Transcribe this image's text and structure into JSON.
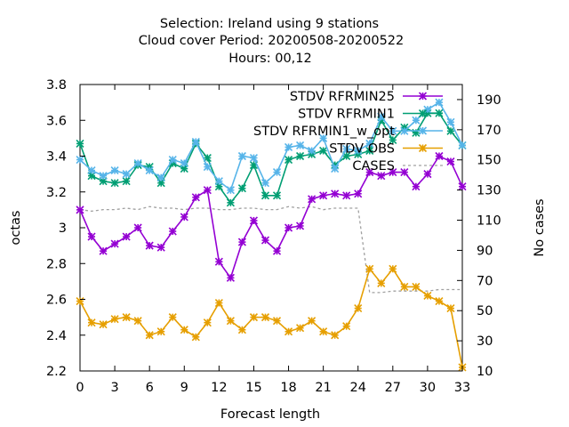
{
  "chart_data": {
    "type": "line",
    "title_lines": [
      "Selection: Ireland using     9 stations",
      "Cloud cover   Period: 20200508-20200522",
      "Hours:  00,12"
    ],
    "xlabel": "Forecast length",
    "ylabel": "octas",
    "y2label": "No cases",
    "xlim": [
      0,
      33
    ],
    "ylim": [
      2.2,
      3.8
    ],
    "y2lim": [
      10,
      200
    ],
    "xticks": [
      0,
      3,
      6,
      9,
      12,
      15,
      18,
      21,
      24,
      27,
      30,
      33
    ],
    "yticks": [
      2.2,
      2.4,
      2.6,
      2.8,
      3,
      3.2,
      3.4,
      3.6,
      3.8
    ],
    "y2ticks": [
      10,
      30,
      50,
      70,
      90,
      110,
      130,
      150,
      170,
      190
    ],
    "ytick_labels": [
      "2.2",
      "2.4",
      "2.6",
      "2.8",
      "3",
      "3.2",
      "3.4",
      "3.6",
      "3.8"
    ],
    "legend_position": "top-right",
    "x": [
      0,
      1,
      2,
      3,
      4,
      5,
      6,
      7,
      8,
      9,
      10,
      11,
      12,
      13,
      14,
      15,
      16,
      17,
      18,
      19,
      20,
      21,
      22,
      23,
      24,
      25,
      26,
      27,
      28,
      29,
      30,
      31,
      32,
      33
    ],
    "series": [
      {
        "name": "STDV RFRMIN25",
        "color": "#9400d3",
        "marker": "x-cross",
        "axis": "left",
        "values": [
          3.1,
          2.95,
          2.87,
          2.91,
          2.95,
          3.0,
          2.9,
          2.89,
          2.98,
          3.06,
          3.17,
          3.21,
          2.81,
          2.72,
          2.92,
          3.04,
          2.93,
          2.87,
          3.0,
          3.01,
          3.16,
          3.18,
          3.19,
          3.18,
          3.19,
          3.31,
          3.29,
          3.31,
          3.31,
          3.23,
          3.3,
          3.4,
          3.37,
          3.23
        ]
      },
      {
        "name": "STDV RFRMIN1",
        "color": "#009e73",
        "marker": "x-cross",
        "axis": "left",
        "values": [
          3.47,
          3.29,
          3.26,
          3.25,
          3.26,
          3.35,
          3.34,
          3.25,
          3.36,
          3.33,
          3.47,
          3.39,
          3.23,
          3.14,
          3.22,
          3.35,
          3.18,
          3.18,
          3.38,
          3.4,
          3.41,
          3.43,
          3.35,
          3.4,
          3.41,
          3.43,
          3.6,
          3.49,
          3.56,
          3.53,
          3.64,
          3.64,
          3.54,
          3.46
        ]
      },
      {
        "name": "STDV RFRMIN1_w_opt",
        "color": "#56b4e9",
        "marker": "x-cross",
        "axis": "left",
        "values": [
          3.38,
          3.32,
          3.29,
          3.32,
          3.3,
          3.36,
          3.32,
          3.28,
          3.38,
          3.36,
          3.48,
          3.34,
          3.26,
          3.21,
          3.4,
          3.39,
          3.25,
          3.31,
          3.45,
          3.46,
          3.43,
          3.5,
          3.33,
          3.44,
          3.43,
          3.47,
          3.62,
          3.54,
          3.54,
          3.6,
          3.66,
          3.7,
          3.59,
          3.46
        ]
      },
      {
        "name": "STDV OBS",
        "color": "#e69f00",
        "marker": "x-cross",
        "axis": "left",
        "values": [
          2.59,
          2.47,
          2.46,
          2.49,
          2.5,
          2.48,
          2.4,
          2.42,
          2.5,
          2.43,
          2.39,
          2.47,
          2.58,
          2.48,
          2.43,
          2.5,
          2.5,
          2.48,
          2.42,
          2.44,
          2.48,
          2.42,
          2.4,
          2.45,
          2.55,
          2.77,
          2.69,
          2.77,
          2.67,
          2.67,
          2.62,
          2.59,
          2.55,
          2.22
        ]
      },
      {
        "name": "CASES",
        "color": "#a0a0a0",
        "marker": "none",
        "dashed": true,
        "axis": "right",
        "values": [
          117,
          116,
          117,
          117,
          118,
          117,
          119,
          118,
          118,
          117,
          118,
          118,
          117,
          117,
          118,
          118,
          117,
          117,
          119,
          118,
          119,
          117,
          118,
          118,
          118,
          62,
          62,
          63,
          63,
          63,
          63,
          64,
          64,
          64
        ]
      }
    ]
  }
}
